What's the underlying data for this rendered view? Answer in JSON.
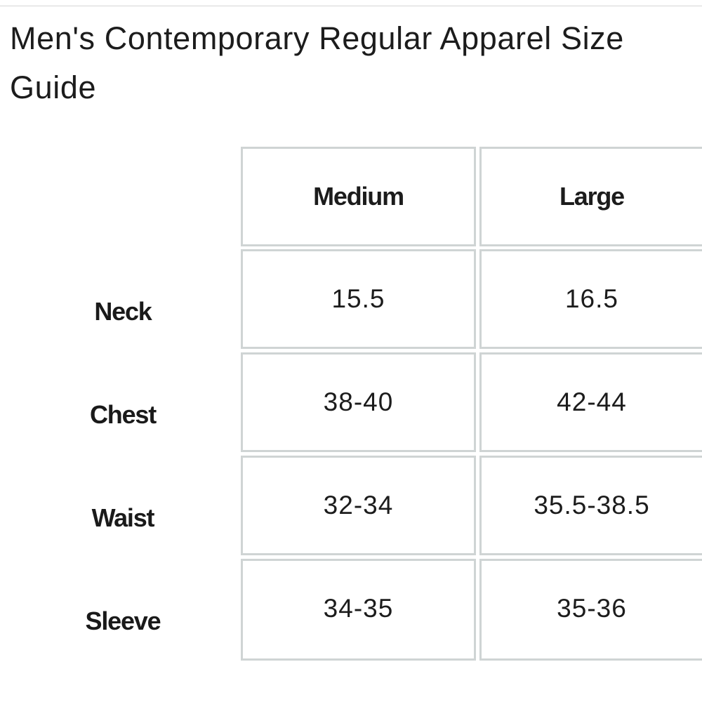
{
  "title": "Men's Contemporary Regular Apparel Size Guide",
  "columns": [
    "Medium",
    "Large"
  ],
  "rows": [
    {
      "label": "Neck",
      "values": [
        "15.5",
        "16.5"
      ]
    },
    {
      "label": "Chest",
      "values": [
        "38-40",
        "42-44"
      ]
    },
    {
      "label": "Waist",
      "values": [
        "32-34",
        "35.5-38.5"
      ]
    },
    {
      "label": "Sleeve",
      "values": [
        "34-35",
        "35-36"
      ]
    }
  ],
  "colors": {
    "border": "#cfd4d4",
    "text": "#1a1a1a",
    "rule": "#d6d6d6"
  }
}
